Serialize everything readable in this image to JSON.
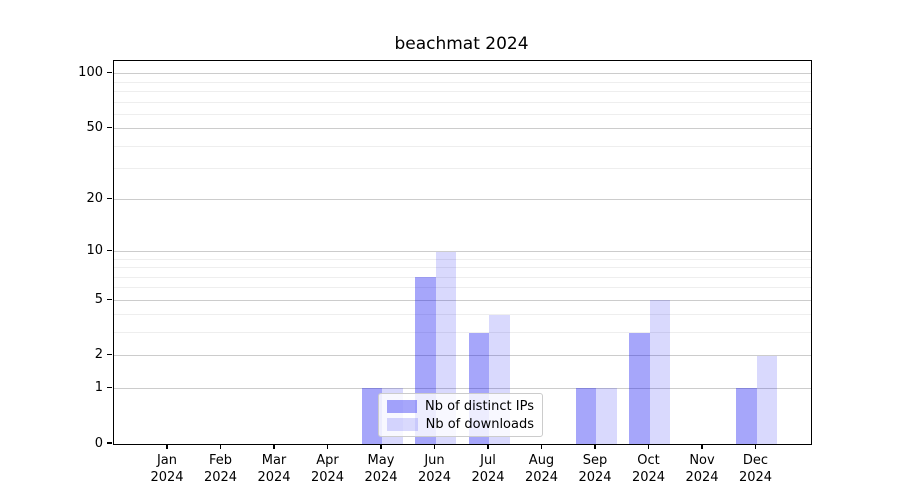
{
  "chart_data": {
    "type": "bar",
    "title": "beachmat 2024",
    "categories": [
      "Jan",
      "Feb",
      "Mar",
      "Apr",
      "May",
      "Jun",
      "Jul",
      "Aug",
      "Sep",
      "Oct",
      "Nov",
      "Dec"
    ],
    "year_label": "2024",
    "series": [
      {
        "name": "Nb of distinct IPs",
        "color": "rgba(0,0,240,0.35)",
        "values": [
          0,
          0,
          0,
          0,
          1,
          7,
          3,
          0,
          1,
          3,
          0,
          1
        ]
      },
      {
        "name": "Nb of downloads",
        "color": "rgba(0,0,240,0.15)",
        "values": [
          0,
          0,
          0,
          0,
          1,
          10,
          4,
          0,
          1,
          5,
          0,
          2
        ]
      }
    ],
    "yticks": [
      0,
      1,
      2,
      5,
      10,
      20,
      50,
      100
    ],
    "minor_gridlines": [
      3,
      4,
      6,
      7,
      8,
      9,
      30,
      40,
      60,
      70,
      80,
      90
    ],
    "ylim": [
      0,
      115
    ],
    "scale": "log1p",
    "grid": true,
    "legend_position": "lower-center",
    "axis_color": "#000000",
    "major_grid_color": "#cccccc",
    "minor_grid_color": "#eeeeee"
  }
}
